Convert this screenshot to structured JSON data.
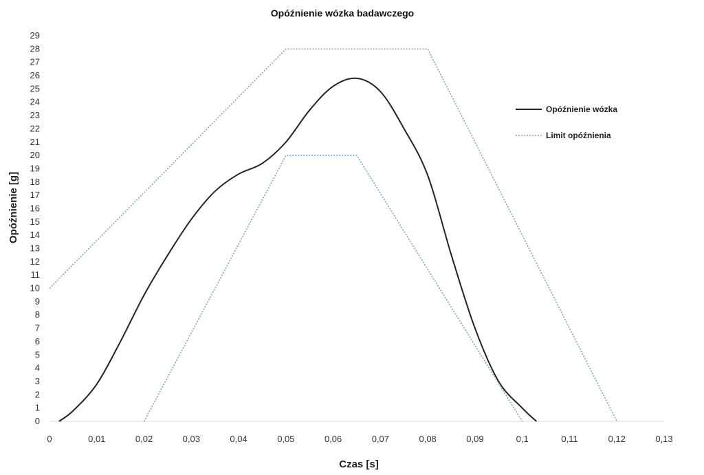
{
  "chart_data": {
    "type": "line",
    "title": "Opóźnienie wózka badawczego",
    "xlabel": "Czas [s]",
    "ylabel": "Opóźnienie [g]",
    "xlim": [
      0,
      0.13
    ],
    "ylim": [
      0,
      29
    ],
    "x_ticks": [
      "0",
      "0,01",
      "0,02",
      "0,03",
      "0,04",
      "0,05",
      "0,06",
      "0,07",
      "0,08",
      "0,09",
      "0,1",
      "0,11",
      "0,12",
      "0,13"
    ],
    "x_tick_values": [
      0,
      0.01,
      0.02,
      0.03,
      0.04,
      0.05,
      0.06,
      0.07,
      0.08,
      0.09,
      0.1,
      0.11,
      0.12,
      0.13
    ],
    "y_ticks": [
      "0",
      "1",
      "2",
      "3",
      "4",
      "5",
      "6",
      "7",
      "8",
      "9",
      "10",
      "11",
      "12",
      "13",
      "14",
      "15",
      "16",
      "17",
      "18",
      "19",
      "20",
      "21",
      "22",
      "23",
      "24",
      "25",
      "26",
      "27",
      "28",
      "29"
    ],
    "grid": false,
    "legend_position": "right",
    "series": [
      {
        "name": "Opóźnienie wózka",
        "color": "#222222",
        "style": "solid",
        "points": [
          [
            0.002,
            0
          ],
          [
            0.005,
            0.8
          ],
          [
            0.01,
            2.8
          ],
          [
            0.015,
            6.0
          ],
          [
            0.02,
            9.5
          ],
          [
            0.025,
            12.5
          ],
          [
            0.03,
            15.2
          ],
          [
            0.035,
            17.3
          ],
          [
            0.04,
            18.6
          ],
          [
            0.045,
            19.4
          ],
          [
            0.05,
            21.0
          ],
          [
            0.055,
            23.4
          ],
          [
            0.06,
            25.2
          ],
          [
            0.065,
            25.8
          ],
          [
            0.07,
            24.8
          ],
          [
            0.075,
            22.0
          ],
          [
            0.08,
            18.5
          ],
          [
            0.085,
            12.5
          ],
          [
            0.09,
            7.0
          ],
          [
            0.095,
            3.0
          ],
          [
            0.1,
            1.0
          ],
          [
            0.103,
            0
          ]
        ]
      },
      {
        "name": "Limit opóźnienia",
        "color": "#7aa5c9",
        "style": "dotted",
        "points": [
          [
            0,
            10
          ],
          [
            0.05,
            28
          ],
          [
            0.08,
            28
          ],
          [
            0.12,
            0
          ]
        ]
      },
      {
        "name": "",
        "color": "#7aa5c9",
        "style": "dotted",
        "points": [
          [
            0.02,
            0
          ],
          [
            0.05,
            20
          ],
          [
            0.065,
            20
          ],
          [
            0.1,
            0
          ]
        ]
      }
    ],
    "legend": [
      {
        "label": "Opóźnienie wózka",
        "color": "#222222",
        "style": "solid"
      },
      {
        "label": "Limit opóźnienia",
        "color": "#7aa5c9",
        "style": "dotted"
      }
    ]
  }
}
